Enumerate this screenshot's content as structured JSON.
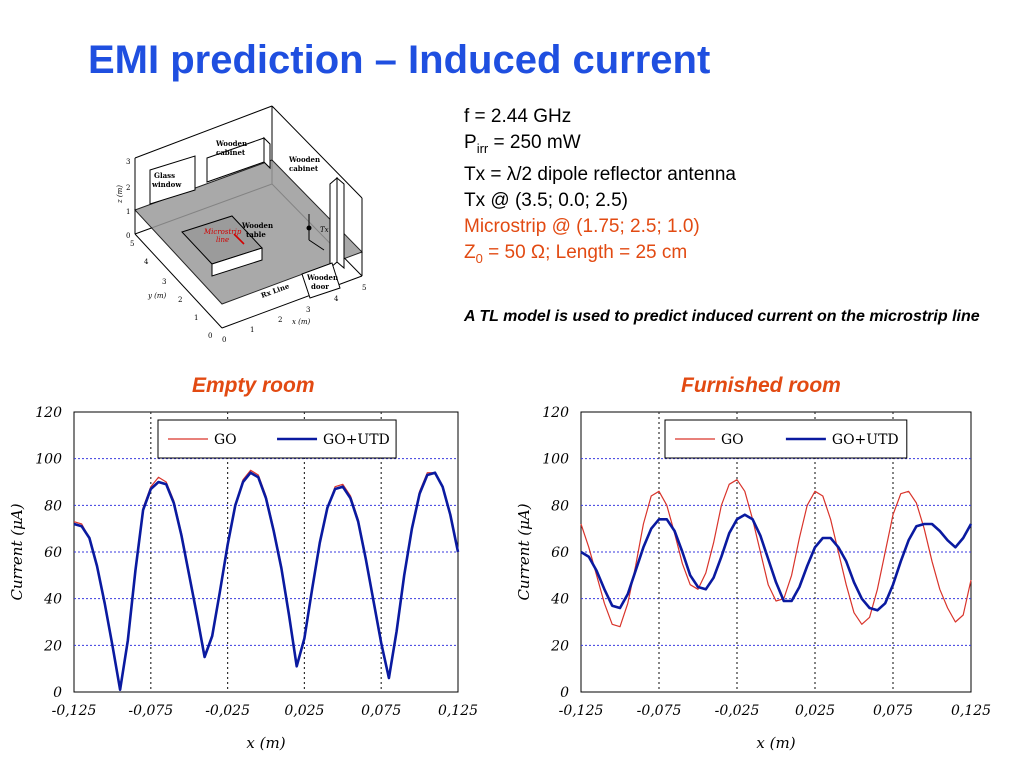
{
  "slide": {
    "title": "EMI prediction – Induced current",
    "params": {
      "freq": "f = 2.44 GHz",
      "p_main": "P",
      "p_sub": "irr",
      "p_rest": " = 250 mW",
      "tx": "Tx = λ/2 dipole reflector antenna",
      "tx_pos": "Tx @ (3.5; 0.0; 2.5)",
      "microstrip": "Microstrip @ (1.75; 2.5; 1.0)",
      "z_main": "Z",
      "z_sub": "0",
      "z_rest": " = 50 Ω; Length = 25 cm"
    },
    "note": "A TL model is used to predict induced current on the microstrip line",
    "colors": {
      "title": "#1f4fe0",
      "accent": "#e24a12",
      "go": "#d9342b",
      "go_utd": "#0a1aa0",
      "grid": "#3a3adf"
    }
  },
  "room_diagram": {
    "labels": {
      "glass_window_1": "Glass",
      "glass_window_2": "window",
      "wooden_cabinet_a1": "Wooden",
      "wooden_cabinet_a2": "cabinet",
      "wooden_cabinet_b1": "Wooden",
      "wooden_cabinet_b2": "cabinet",
      "microstrip_1": "Microstrip",
      "microstrip_2": "line",
      "wooden_table_1": "Wooden",
      "wooden_table_2": "table",
      "tx": "Tx",
      "wooden_door_1": "Wooden",
      "wooden_door_2": "door",
      "rx_line": "Rx Line",
      "z_axis": "z (m)",
      "y_axis": "y (m)",
      "x_axis": "x (m)"
    },
    "z_ticks": [
      "3",
      "2",
      "1",
      "0"
    ],
    "y_ticks": [
      "5",
      "4",
      "3",
      "2",
      "1",
      "0"
    ],
    "x_ticks": [
      "0",
      "1",
      "2",
      "3",
      "4",
      "5"
    ]
  },
  "chart_data": [
    {
      "type": "line",
      "title": "Empty room",
      "xlabel": "x (m)",
      "ylabel": "Current (μA)",
      "xlim": [
        -0.125,
        0.125
      ],
      "ylim": [
        0,
        120
      ],
      "x_ticks": [
        "-0,125",
        "-0,075",
        "-0,025",
        "0,025",
        "0,075",
        "0,125"
      ],
      "y_ticks": [
        "0",
        "20",
        "40",
        "60",
        "80",
        "100",
        "120"
      ],
      "grid": true,
      "legend": "top-left",
      "x": [
        -0.125,
        -0.12,
        -0.115,
        -0.11,
        -0.105,
        -0.1,
        -0.095,
        -0.09,
        -0.085,
        -0.08,
        -0.075,
        -0.07,
        -0.065,
        -0.06,
        -0.055,
        -0.05,
        -0.045,
        -0.04,
        -0.035,
        -0.03,
        -0.025,
        -0.02,
        -0.015,
        -0.01,
        -0.005,
        0,
        0.005,
        0.01,
        0.015,
        0.02,
        0.025,
        0.03,
        0.035,
        0.04,
        0.045,
        0.05,
        0.055,
        0.06,
        0.065,
        0.07,
        0.075,
        0.08,
        0.085,
        0.09,
        0.095,
        0.1,
        0.105,
        0.11,
        0.115,
        0.12,
        0.125
      ],
      "series": [
        {
          "name": "GO",
          "values": [
            73,
            72,
            66,
            54,
            38,
            20,
            2,
            22,
            52,
            79,
            88,
            92,
            90,
            82,
            68,
            51,
            34,
            16,
            24,
            43,
            63,
            80,
            91,
            95,
            93,
            84,
            70,
            54,
            34,
            12,
            23,
            44,
            64,
            79,
            88,
            89,
            84,
            74,
            58,
            40,
            22,
            6,
            26,
            50,
            70,
            86,
            94,
            94,
            88,
            76,
            60
          ]
        },
        {
          "name": "GO+UTD",
          "values": [
            72,
            71,
            66,
            54,
            38,
            20,
            1,
            22,
            52,
            78,
            87,
            90,
            89,
            81,
            67,
            50,
            33,
            15,
            24,
            43,
            63,
            80,
            90,
            94,
            92,
            83,
            69,
            53,
            33,
            11,
            23,
            44,
            64,
            79,
            87,
            88,
            83,
            73,
            57,
            39,
            21,
            6,
            26,
            50,
            70,
            85,
            93,
            94,
            88,
            76,
            60
          ]
        }
      ]
    },
    {
      "type": "line",
      "title": "Furnished room",
      "xlabel": "x (m)",
      "ylabel": "Current (μA)",
      "xlim": [
        -0.125,
        0.125
      ],
      "ylim": [
        0,
        120
      ],
      "x_ticks": [
        "-0,125",
        "-0,075",
        "-0,025",
        "0,025",
        "0,075",
        "0,125"
      ],
      "y_ticks": [
        "0",
        "20",
        "40",
        "60",
        "80",
        "100",
        "120"
      ],
      "grid": true,
      "legend": "top-left",
      "x": [
        -0.125,
        -0.12,
        -0.115,
        -0.11,
        -0.105,
        -0.1,
        -0.095,
        -0.09,
        -0.085,
        -0.08,
        -0.075,
        -0.07,
        -0.065,
        -0.06,
        -0.055,
        -0.05,
        -0.045,
        -0.04,
        -0.035,
        -0.03,
        -0.025,
        -0.02,
        -0.015,
        -0.01,
        -0.005,
        0,
        0.005,
        0.01,
        0.015,
        0.02,
        0.025,
        0.03,
        0.035,
        0.04,
        0.045,
        0.05,
        0.055,
        0.06,
        0.065,
        0.07,
        0.075,
        0.08,
        0.085,
        0.09,
        0.095,
        0.1,
        0.105,
        0.11,
        0.115,
        0.12,
        0.125
      ],
      "series": [
        {
          "name": "GO",
          "values": [
            72,
            62,
            50,
            38,
            29,
            28,
            38,
            54,
            72,
            84,
            86,
            80,
            68,
            55,
            46,
            44,
            51,
            64,
            80,
            89,
            91,
            86,
            74,
            60,
            46,
            39,
            40,
            50,
            66,
            80,
            86,
            84,
            74,
            60,
            46,
            34,
            29,
            32,
            44,
            60,
            76,
            85,
            86,
            81,
            70,
            56,
            44,
            36,
            30,
            33,
            48
          ]
        },
        {
          "name": "GO+UTD",
          "values": [
            60,
            58,
            52,
            44,
            37,
            36,
            42,
            52,
            62,
            70,
            74,
            74,
            69,
            60,
            50,
            45,
            44,
            49,
            58,
            68,
            74,
            76,
            74,
            67,
            57,
            47,
            39,
            39,
            45,
            54,
            62,
            66,
            66,
            62,
            56,
            47,
            40,
            36,
            35,
            38,
            46,
            56,
            65,
            71,
            72,
            72,
            69,
            65,
            62,
            66,
            72
          ]
        }
      ]
    }
  ]
}
